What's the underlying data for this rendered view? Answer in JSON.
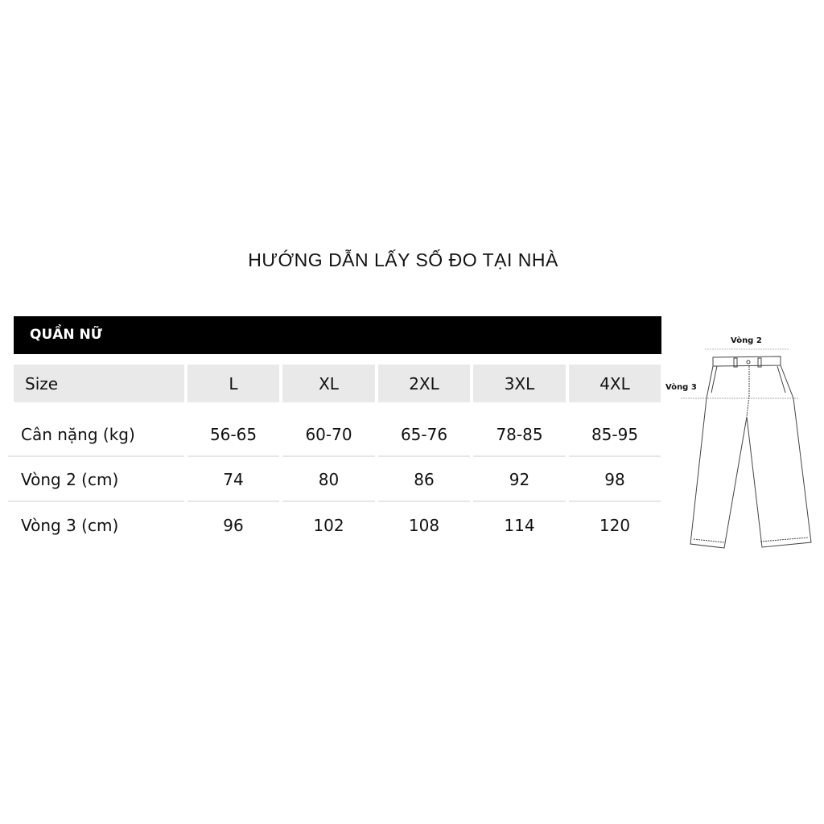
{
  "title": "HƯỚNG DẪN LẤY SỐ ĐO TẠI NHÀ",
  "section": "QUẦN NỮ",
  "table": {
    "header": [
      "Size",
      "L",
      "XL",
      "2XL",
      "3XL",
      "4XL"
    ],
    "rows": [
      [
        "Cân nặng (kg)",
        "56-65",
        "60-70",
        "65-76",
        "78-85",
        "85-95"
      ],
      [
        "Vòng 2 (cm)",
        "74",
        "80",
        "86",
        "92",
        "98"
      ],
      [
        "Vòng 3 (cm)",
        "96",
        "102",
        "108",
        "114",
        "120"
      ]
    ]
  },
  "figure": {
    "label_waist": "Vòng 2",
    "label_hip": "Vòng 3",
    "icon": "pants-diagram"
  }
}
